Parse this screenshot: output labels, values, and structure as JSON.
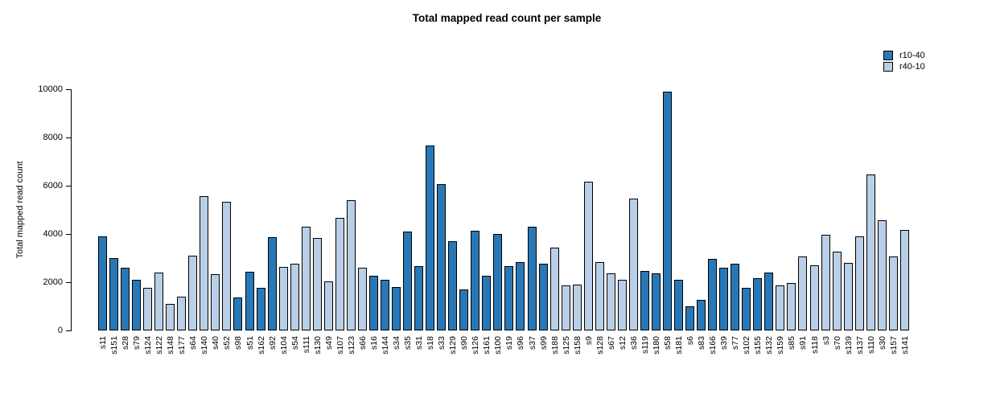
{
  "chart_data": {
    "type": "bar",
    "title": "Total mapped read count per sample",
    "ylabel": "Total mapped read count",
    "xlabel": "",
    "ylim": [
      0,
      10000
    ],
    "yticks": [
      0,
      2000,
      4000,
      6000,
      8000,
      10000
    ],
    "grid": false,
    "legend_position": "top-right",
    "legend": [
      {
        "label": "r10-40",
        "color": "#2878b8"
      },
      {
        "label": "r40-10",
        "color": "#b9cfe7"
      }
    ],
    "bar_border_color": "#000000",
    "bars": [
      {
        "sample": "s11",
        "value": 3900,
        "group": "r10-40"
      },
      {
        "sample": "s151",
        "value": 3000,
        "group": "r10-40"
      },
      {
        "sample": "s28",
        "value": 2600,
        "group": "r10-40"
      },
      {
        "sample": "s79",
        "value": 2100,
        "group": "r10-40"
      },
      {
        "sample": "s124",
        "value": 1750,
        "group": "r40-10"
      },
      {
        "sample": "s122",
        "value": 2400,
        "group": "r40-10"
      },
      {
        "sample": "s148",
        "value": 1100,
        "group": "r40-10"
      },
      {
        "sample": "s177",
        "value": 1400,
        "group": "r40-10"
      },
      {
        "sample": "s64",
        "value": 3100,
        "group": "r40-10"
      },
      {
        "sample": "s140",
        "value": 5550,
        "group": "r40-10"
      },
      {
        "sample": "s40",
        "value": 2330,
        "group": "r40-10"
      },
      {
        "sample": "s52",
        "value": 5330,
        "group": "r40-10"
      },
      {
        "sample": "s98",
        "value": 1370,
        "group": "r10-40"
      },
      {
        "sample": "s51",
        "value": 2430,
        "group": "r10-40"
      },
      {
        "sample": "s162",
        "value": 1750,
        "group": "r10-40"
      },
      {
        "sample": "s92",
        "value": 3850,
        "group": "r10-40"
      },
      {
        "sample": "s104",
        "value": 2620,
        "group": "r40-10"
      },
      {
        "sample": "s54",
        "value": 2780,
        "group": "r40-10"
      },
      {
        "sample": "s111",
        "value": 4300,
        "group": "r40-10"
      },
      {
        "sample": "s130",
        "value": 3820,
        "group": "r40-10"
      },
      {
        "sample": "s49",
        "value": 2020,
        "group": "r40-10"
      },
      {
        "sample": "s107",
        "value": 4650,
        "group": "r40-10"
      },
      {
        "sample": "s123",
        "value": 5400,
        "group": "r40-10"
      },
      {
        "sample": "s66",
        "value": 2600,
        "group": "r40-10"
      },
      {
        "sample": "s16",
        "value": 2250,
        "group": "r10-40"
      },
      {
        "sample": "s144",
        "value": 2100,
        "group": "r10-40"
      },
      {
        "sample": "s34",
        "value": 1800,
        "group": "r10-40"
      },
      {
        "sample": "s35",
        "value": 4100,
        "group": "r10-40"
      },
      {
        "sample": "s31",
        "value": 2650,
        "group": "r10-40"
      },
      {
        "sample": "s18",
        "value": 7650,
        "group": "r10-40"
      },
      {
        "sample": "s33",
        "value": 6050,
        "group": "r10-40"
      },
      {
        "sample": "s129",
        "value": 3700,
        "group": "r10-40"
      },
      {
        "sample": "s90",
        "value": 1700,
        "group": "r10-40"
      },
      {
        "sample": "s126",
        "value": 4130,
        "group": "r10-40"
      },
      {
        "sample": "s161",
        "value": 2250,
        "group": "r10-40"
      },
      {
        "sample": "s100",
        "value": 4000,
        "group": "r10-40"
      },
      {
        "sample": "s19",
        "value": 2650,
        "group": "r10-40"
      },
      {
        "sample": "s96",
        "value": 2850,
        "group": "r10-40"
      },
      {
        "sample": "s37",
        "value": 4300,
        "group": "r10-40"
      },
      {
        "sample": "s99",
        "value": 2750,
        "group": "r10-40"
      },
      {
        "sample": "s188",
        "value": 3450,
        "group": "r40-10"
      },
      {
        "sample": "s125",
        "value": 1850,
        "group": "r40-10"
      },
      {
        "sample": "s158",
        "value": 1900,
        "group": "r40-10"
      },
      {
        "sample": "s9",
        "value": 6150,
        "group": "r40-10"
      },
      {
        "sample": "s128",
        "value": 2850,
        "group": "r40-10"
      },
      {
        "sample": "s67",
        "value": 2350,
        "group": "r40-10"
      },
      {
        "sample": "s12",
        "value": 2100,
        "group": "r40-10"
      },
      {
        "sample": "s36",
        "value": 5480,
        "group": "r40-10"
      },
      {
        "sample": "s119",
        "value": 2450,
        "group": "r10-40"
      },
      {
        "sample": "s180",
        "value": 2350,
        "group": "r10-40"
      },
      {
        "sample": "s58",
        "value": 9900,
        "group": "r10-40"
      },
      {
        "sample": "s181",
        "value": 2100,
        "group": "r10-40"
      },
      {
        "sample": "s6",
        "value": 1000,
        "group": "r10-40"
      },
      {
        "sample": "s83",
        "value": 1250,
        "group": "r10-40"
      },
      {
        "sample": "s166",
        "value": 2950,
        "group": "r10-40"
      },
      {
        "sample": "s39",
        "value": 2600,
        "group": "r10-40"
      },
      {
        "sample": "s77",
        "value": 2750,
        "group": "r10-40"
      },
      {
        "sample": "s102",
        "value": 1750,
        "group": "r10-40"
      },
      {
        "sample": "s155",
        "value": 2150,
        "group": "r10-40"
      },
      {
        "sample": "s132",
        "value": 2400,
        "group": "r10-40"
      },
      {
        "sample": "s159",
        "value": 1850,
        "group": "r40-10"
      },
      {
        "sample": "s85",
        "value": 1950,
        "group": "r40-10"
      },
      {
        "sample": "s91",
        "value": 3050,
        "group": "r40-10"
      },
      {
        "sample": "s118",
        "value": 2700,
        "group": "r40-10"
      },
      {
        "sample": "s3",
        "value": 3950,
        "group": "r40-10"
      },
      {
        "sample": "s70",
        "value": 3250,
        "group": "r40-10"
      },
      {
        "sample": "s139",
        "value": 2800,
        "group": "r40-10"
      },
      {
        "sample": "s137",
        "value": 3900,
        "group": "r40-10"
      },
      {
        "sample": "s110",
        "value": 6450,
        "group": "r40-10"
      },
      {
        "sample": "s30",
        "value": 4550,
        "group": "r40-10"
      },
      {
        "sample": "s157",
        "value": 3050,
        "group": "r40-10"
      },
      {
        "sample": "s141",
        "value": 4150,
        "group": "r40-10"
      }
    ]
  }
}
